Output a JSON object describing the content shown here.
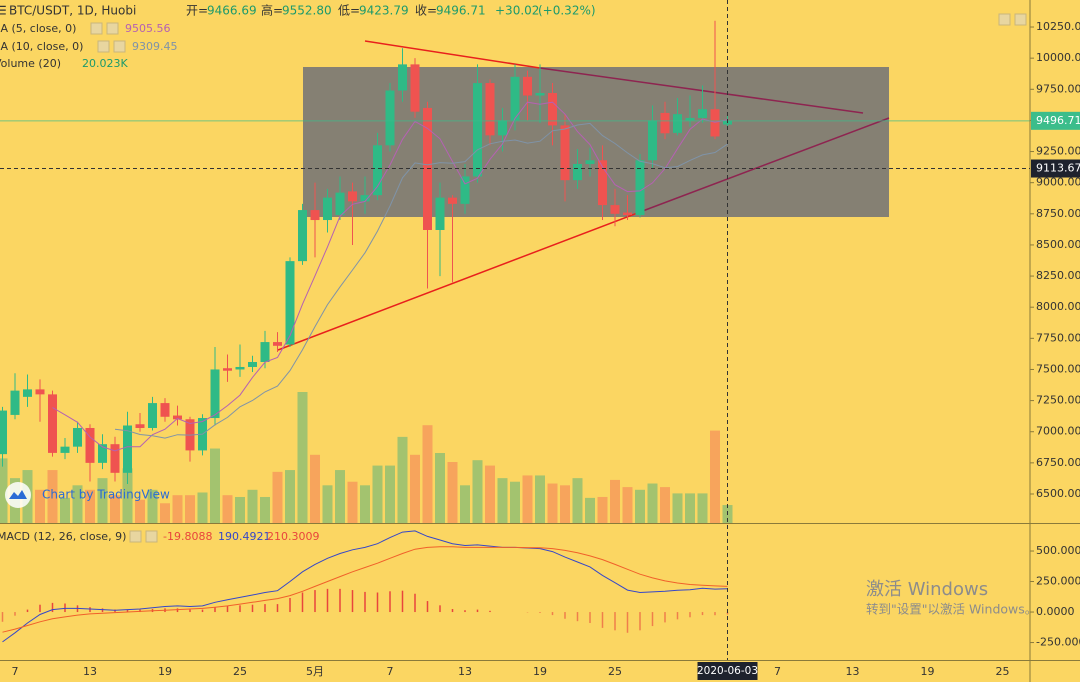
{
  "chart_data": {
    "type": "candlestick",
    "title": "BTC/USDT, 1D, Huobi",
    "quote": {
      "names": [
        "开=",
        "高=",
        "低=",
        "收="
      ],
      "values": [
        9466.69,
        9552.8,
        9423.79,
        9496.71
      ],
      "value_labels": [
        "9466.69",
        "9552.80",
        "9423.79",
        "9496.71"
      ]
    },
    "change": {
      "value": 30.02,
      "label": "+30.02"
    },
    "change_pct": {
      "value": 0.32,
      "label": "(+0.32%)"
    },
    "up_color": "#2fba86",
    "down_color": "#ef5350",
    "volume_up_color": "#a3c36f",
    "volume_down_color": "#f7a45c",
    "categories": [
      null,
      "7",
      null,
      null,
      null,
      null,
      null,
      "13",
      null,
      null,
      null,
      null,
      null,
      "19",
      null,
      null,
      null,
      null,
      null,
      "25",
      null,
      null,
      null,
      null,
      null,
      "5月",
      null,
      null,
      null,
      null,
      null,
      "7",
      null,
      null,
      null,
      null,
      null,
      "13",
      null,
      null,
      null,
      null,
      null,
      "19",
      null,
      null,
      null,
      null,
      null,
      "25",
      null,
      null,
      null,
      null,
      null,
      null,
      null,
      null,
      null,
      null,
      null,
      null,
      "7",
      null,
      null,
      null,
      null,
      null,
      "13",
      null,
      null,
      null,
      null,
      null,
      "19",
      null,
      null,
      null,
      null,
      null,
      "25",
      null,
      null
    ],
    "open": [
      6820,
      7135,
      7280,
      7340,
      7300,
      6830,
      6880,
      7030,
      6750,
      6900,
      6670,
      7060,
      7030,
      7230,
      7130,
      7100,
      6850,
      7110,
      7510,
      7500,
      7520,
      7560,
      7720,
      7700,
      8370,
      8780,
      8700,
      8740,
      8930,
      8850,
      8900,
      9300,
      9740,
      9950,
      9600,
      8620,
      8880,
      8830,
      9050,
      9800,
      9380,
      9500,
      9850,
      9700,
      9720,
      9460,
      9020,
      9150,
      9180,
      8820,
      8760,
      8740,
      9180,
      9560,
      9400,
      9500,
      9520,
      9590,
      9466.69,
      null,
      null,
      null,
      null,
      null,
      null,
      null,
      null,
      null,
      null,
      null,
      null,
      null,
      null,
      null,
      null,
      null,
      null,
      null,
      null,
      null,
      null,
      null,
      null
    ],
    "high": [
      7200,
      7470,
      7460,
      7420,
      7330,
      6950,
      7080,
      7060,
      6980,
      6960,
      7160,
      7150,
      7280,
      7270,
      7210,
      7120,
      7140,
      7680,
      7620,
      7700,
      7610,
      7810,
      7800,
      8400,
      8830,
      9000,
      8950,
      9050,
      9000,
      9050,
      9400,
      9800,
      10080,
      10000,
      9650,
      9000,
      8900,
      9150,
      9950,
      9830,
      9600,
      9950,
      9900,
      9950,
      9800,
      9550,
      9270,
      9280,
      9300,
      8950,
      8900,
      9230,
      9620,
      9650,
      9680,
      9700,
      9780,
      10300,
      9552.8,
      null,
      null,
      null,
      null,
      null,
      null,
      null,
      null,
      null,
      null,
      null,
      null,
      null,
      null,
      null,
      null,
      null,
      null,
      null,
      null,
      null,
      null,
      null,
      null
    ],
    "low": [
      6720,
      7100,
      7200,
      7080,
      6800,
      6780,
      6830,
      6600,
      6700,
      6600,
      6580,
      7000,
      7010,
      7080,
      7050,
      6760,
      6810,
      7050,
      7400,
      7440,
      7480,
      7510,
      7640,
      7680,
      8340,
      8400,
      8600,
      8700,
      8500,
      8750,
      8860,
      9250,
      9650,
      9520,
      8150,
      8250,
      8200,
      8750,
      9000,
      9300,
      9250,
      9420,
      9500,
      9480,
      9300,
      8850,
      8950,
      9050,
      8700,
      8650,
      8700,
      8720,
      9120,
      9350,
      9380,
      9450,
      9480,
      9350,
      9423.79,
      null,
      null,
      null,
      null,
      null,
      null,
      null,
      null,
      null,
      null,
      null,
      null,
      null,
      null,
      null,
      null,
      null,
      null,
      null,
      null,
      null,
      null,
      null,
      null
    ],
    "close": [
      7170,
      7330,
      7340,
      7300,
      6830,
      6880,
      7030,
      6750,
      6900,
      6670,
      7050,
      7030,
      7230,
      7120,
      7100,
      6850,
      7110,
      7500,
      7490,
      7520,
      7560,
      7720,
      7690,
      8370,
      8780,
      8700,
      8880,
      8920,
      8850,
      8900,
      9300,
      9740,
      9950,
      9570,
      8620,
      8880,
      8830,
      9050,
      9800,
      9380,
      9500,
      9850,
      9700,
      9720,
      9460,
      9020,
      9150,
      9180,
      8820,
      8750,
      8740,
      9180,
      9500,
      9396.7,
      9550,
      9520,
      9590,
      9371.09,
      9496.71,
      null,
      null,
      null,
      null,
      null,
      null,
      null,
      null,
      null,
      null,
      null,
      null,
      null,
      null,
      null,
      null,
      null,
      null,
      null,
      null,
      null,
      null,
      null,
      null
    ],
    "ma": [
      {
        "name": "MA (5, close, 0)",
        "color": "#b561b3",
        "values": [
          null,
          null,
          null,
          null,
          7194,
          7136,
          7076,
          6958,
          6878,
          6846,
          6880,
          6880,
          6976,
          7020,
          7106,
          7066,
          7082,
          7136,
          7210,
          7294,
          7436,
          7558,
          7596,
          7772,
          8024,
          8252,
          8484,
          8730,
          8826,
          8850,
          8970,
          9142,
          9348,
          9492,
          9436,
          9352,
          9170,
          8990,
          9036,
          9188,
          9312,
          9516,
          9646,
          9630,
          9646,
          9550,
          9410,
          9306,
          9126,
          8984,
          8928,
          8934,
          8998,
          9113,
          9273,
          9429,
          9511,
          9486,
          9505.56,
          null,
          null,
          null,
          null,
          null,
          null,
          null,
          null,
          null,
          null,
          null,
          null,
          null,
          null,
          null,
          null,
          null,
          null,
          null,
          null,
          null,
          null,
          null,
          null
        ]
      },
      {
        "name": "MA (10, close, 0)",
        "color": "#7f93a8",
        "values": [
          null,
          null,
          null,
          null,
          null,
          null,
          null,
          null,
          null,
          7020,
          7008,
          6978,
          6967,
          6949,
          6976,
          6973,
          6981,
          7056,
          7115,
          7200,
          7251,
          7320,
          7366,
          7491,
          7659,
          7844,
          8021,
          8163,
          8299,
          8437,
          8611,
          8813,
          9039,
          9159,
          9143,
          9161,
          9156,
          9169,
          9264,
          9312,
          9332,
          9343,
          9318,
          9333,
          9417,
          9431,
          9463,
          9476,
          9378,
          9315,
          9239,
          9172,
          9152,
          9120,
          9129,
          9179,
          9223,
          9242,
          9309.45,
          null,
          null,
          null,
          null,
          null,
          null,
          null,
          null,
          null,
          null,
          null,
          null,
          null,
          null,
          null,
          null,
          null,
          null,
          null,
          null,
          null,
          null,
          null,
          null
        ]
      }
    ],
    "volume": {
      "name": "Volume (20)",
      "color": "#1d9a6c",
      "values": [
        72,
        50,
        59,
        37,
        59,
        28,
        42,
        37,
        50,
        31,
        61,
        26,
        37,
        22,
        31,
        31,
        34,
        83,
        31,
        29,
        37,
        29,
        57,
        59,
        146,
        76,
        42,
        59,
        46,
        42,
        64,
        64,
        96,
        76,
        109,
        78,
        68,
        42,
        70,
        64,
        50,
        46,
        53,
        53,
        44,
        42,
        50,
        28,
        29,
        48,
        40,
        37,
        44,
        40,
        33,
        33,
        33,
        103,
        20.023,
        null,
        null,
        null,
        null,
        null,
        null,
        null,
        null,
        null,
        null,
        null,
        null,
        null,
        null,
        null,
        null,
        null,
        null,
        null,
        null,
        null,
        null,
        null,
        null
      ],
      "value_labels": [
        null,
        null,
        null,
        null,
        null,
        null,
        null,
        null,
        null,
        null,
        null,
        null,
        null,
        null,
        null,
        null,
        null,
        null,
        null,
        null,
        null,
        null,
        null,
        null,
        null,
        null,
        null,
        null,
        null,
        null,
        null,
        null,
        null,
        null,
        null,
        null,
        null,
        null,
        null,
        null,
        null,
        null,
        null,
        null,
        null,
        null,
        null,
        null,
        null,
        null,
        null,
        null,
        null,
        null,
        null,
        null,
        null,
        null,
        "20.023K",
        null,
        null,
        null,
        null,
        null,
        null,
        null,
        null,
        null,
        null,
        null,
        null,
        null,
        null,
        null,
        null,
        null,
        null,
        null,
        null,
        null,
        null,
        null,
        null
      ]
    },
    "ylim": [
      6267,
      10467
    ],
    "yticks": [
      {
        "value": 6500,
        "label": "6500.00"
      },
      {
        "value": 6750,
        "label": "6750.00"
      },
      {
        "value": 7000,
        "label": "7000.00"
      },
      {
        "value": 7250,
        "label": "7250.00"
      },
      {
        "value": 7500,
        "label": "7500.00"
      },
      {
        "value": 7750,
        "label": "7750.00"
      },
      {
        "value": 8000,
        "label": "8000.00"
      },
      {
        "value": 8250,
        "label": "8250.00"
      },
      {
        "value": 8500,
        "label": "8500.00"
      },
      {
        "value": 8750,
        "label": "8750.00"
      },
      {
        "value": 9000,
        "label": "9000.00"
      },
      {
        "value": 9250,
        "label": "9250.00"
      },
      {
        "value": 9500,
        "label": "9500.00"
      },
      {
        "value": 9750,
        "label": "9750.00"
      },
      {
        "value": 10000,
        "label": "10000.00"
      },
      {
        "value": 10250,
        "label": "10250.00"
      }
    ],
    "last_price_color": "#3bbd8b",
    "crosshair": {
      "x_label": "2020-06-03",
      "y": 9113.67
    },
    "macd": {
      "name": "MACD (12, 26, close, 9)",
      "hist_color": "#e8453c",
      "macd_color": "#3547c9",
      "signal_color": "#f0602a",
      "histogram": [
        -80,
        -30,
        20,
        60,
        75,
        70,
        55,
        40,
        30,
        20,
        20,
        20,
        25,
        30,
        30,
        20,
        20,
        40,
        50,
        55,
        60,
        65,
        65,
        115,
        160,
        180,
        190,
        190,
        180,
        165,
        160,
        170,
        175,
        150,
        90,
        55,
        25,
        15,
        20,
        10,
        0,
        0,
        -3,
        -7,
        -25,
        -55,
        -75,
        -90,
        -130,
        -150,
        -170,
        -150,
        -115,
        -85,
        -60,
        -43,
        -25,
        -26,
        -19.8088,
        null,
        null,
        null,
        null,
        null,
        null,
        null,
        null,
        null,
        null,
        null,
        null,
        null,
        null,
        null,
        null,
        null,
        null,
        null,
        null,
        null,
        null,
        null,
        null
      ],
      "macd": [
        -245,
        -170,
        -90,
        -20,
        20,
        30,
        30,
        25,
        20,
        15,
        20,
        25,
        35,
        45,
        50,
        45,
        50,
        80,
        100,
        120,
        140,
        160,
        175,
        250,
        330,
        390,
        440,
        480,
        510,
        530,
        560,
        610,
        655,
        665,
        620,
        590,
        560,
        545,
        550,
        540,
        530,
        530,
        525,
        520,
        495,
        450,
        410,
        370,
        300,
        240,
        180,
        160,
        165,
        170,
        178,
        183,
        195,
        188,
        190.4921,
        null,
        null,
        null,
        null,
        null,
        null,
        null,
        null,
        null,
        null,
        null,
        null,
        null,
        null,
        null,
        null,
        null,
        null,
        null,
        null,
        null,
        null,
        null,
        null
      ],
      "signal": [
        -165,
        -140,
        -110,
        -80,
        -55,
        -40,
        -25,
        -15,
        -10,
        -5,
        0,
        5,
        10,
        15,
        20,
        25,
        30,
        40,
        50,
        65,
        80,
        95,
        110,
        135,
        170,
        210,
        250,
        290,
        330,
        365,
        400,
        440,
        480,
        515,
        530,
        535,
        535,
        530,
        530,
        530,
        530,
        530,
        528,
        527,
        520,
        505,
        485,
        460,
        430,
        390,
        350,
        310,
        280,
        255,
        238,
        226,
        220,
        214,
        210.3009,
        null,
        null,
        null,
        null,
        null,
        null,
        null,
        null,
        null,
        null,
        null,
        null,
        null,
        null,
        null,
        null,
        null,
        null,
        null,
        null,
        null,
        null,
        null,
        null
      ],
      "ylim": [
        -393,
        705
      ],
      "yticks": [
        {
          "value": 500,
          "label": "500.0000"
        },
        {
          "value": 250,
          "label": "250.0000"
        },
        {
          "value": 0,
          "label": "0.0000"
        },
        {
          "value": -250,
          "label": "-250.0000"
        }
      ]
    }
  },
  "branding": "Chart by TradingView",
  "watermark": {
    "title": "激活 Windows",
    "subtitle": "转到\"设置\"以激活 Windows。"
  }
}
